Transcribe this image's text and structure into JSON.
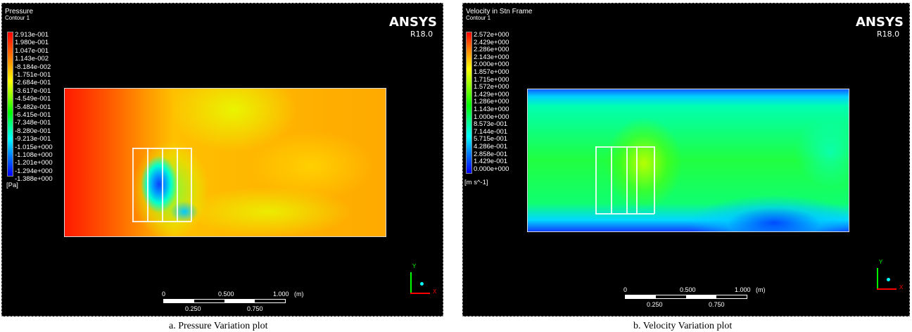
{
  "panels": [
    {
      "title": "Pressure",
      "subtitle": "Contour 1",
      "brand": "ANSYS",
      "version": "R18.0",
      "legend_values": [
        "2.913e-001",
        "1.980e-001",
        "1.047e-001",
        "1.143e-002",
        "-8.184e-002",
        "-1.751e-001",
        "-2.684e-001",
        "-3.617e-001",
        "-4.549e-001",
        "-5.482e-001",
        "-6.415e-001",
        "-7.348e-001",
        "-8.280e-001",
        "-9.213e-001",
        "-1.015e+000",
        "-1.108e+000",
        "-1.201e+000",
        "-1.294e+000",
        "-1.388e+000"
      ],
      "unit": "[Pa]",
      "scale_labels": {
        "zero": "0",
        "half": "0.500",
        "one": "1.000",
        "unit": "(m)",
        "quarter": "0.250",
        "three_quarter": "0.750"
      },
      "axis_labels": {
        "y": "Y",
        "x": "X"
      },
      "caption": "a. Pressure Variation plot"
    },
    {
      "title": "Velocity in Stn Frame",
      "subtitle": "Contour 1",
      "brand": "ANSYS",
      "version": "R18.0",
      "legend_values": [
        "2.572e+000",
        "2.429e+000",
        "2.286e+000",
        "2.143e+000",
        "2.000e+000",
        "1.857e+000",
        "1.715e+000",
        "1.572e+000",
        "1.429e+000",
        "1.286e+000",
        "1.143e+000",
        "1.000e+000",
        "8.573e-001",
        "7.144e-001",
        "5.715e-001",
        "4.286e-001",
        "2.858e-001",
        "1.429e-001",
        "0.000e+000"
      ],
      "unit": "[m s^-1]",
      "scale_labels": {
        "zero": "0",
        "half": "0.500",
        "one": "1.000",
        "unit": "(m)",
        "quarter": "0.250",
        "three_quarter": "0.750"
      },
      "axis_labels": {
        "y": "Y",
        "x": "X"
      },
      "caption": "b. Velocity Variation plot"
    }
  ],
  "colors": {
    "contour_scale": [
      "#ff0000",
      "#ffff00",
      "#00ff00",
      "#00ffff",
      "#0000ff"
    ],
    "axis_y": "#00ff00",
    "axis_x": "#ff0000",
    "axis_z": "#00ffff"
  }
}
